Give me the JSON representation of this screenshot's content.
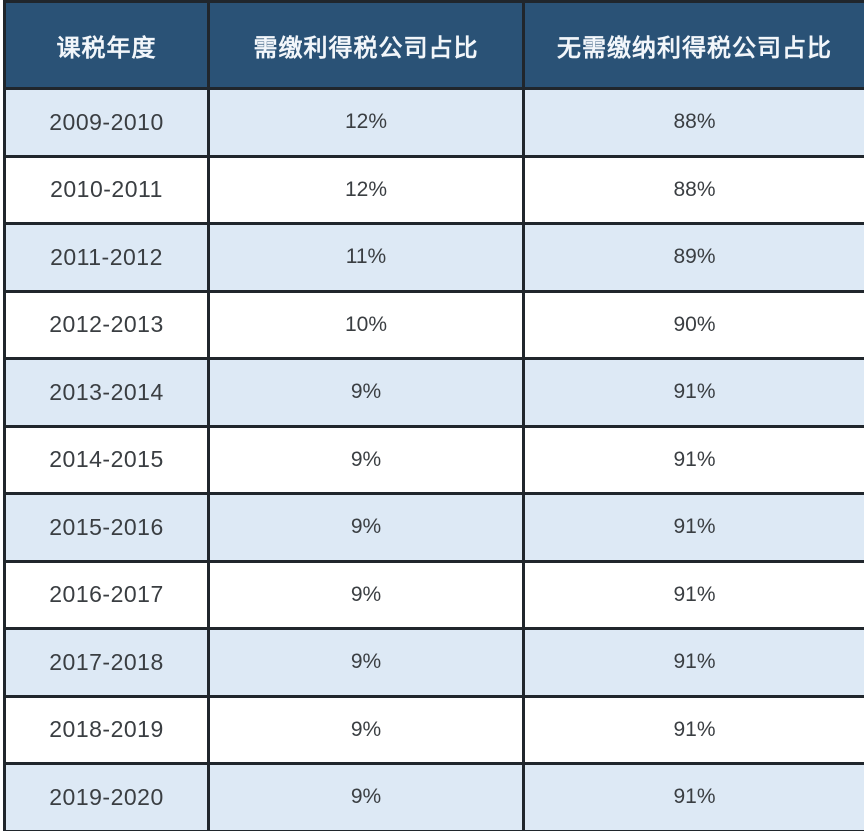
{
  "chart_data": {
    "type": "table",
    "columns": [
      "课税年度",
      "需缴利得税公司占比",
      "无需缴纳利得税公司占比"
    ],
    "rows": [
      [
        "2009-2010",
        "12%",
        "88%"
      ],
      [
        "2010-2011",
        "12%",
        "88%"
      ],
      [
        "2011-2012",
        "11%",
        "89%"
      ],
      [
        "2012-2013",
        "10%",
        "90%"
      ],
      [
        "2013-2014",
        "9%",
        "91%"
      ],
      [
        "2014-2015",
        "9%",
        "91%"
      ],
      [
        "2015-2016",
        "9%",
        "91%"
      ],
      [
        "2016-2017",
        "9%",
        "91%"
      ],
      [
        "2017-2018",
        "9%",
        "91%"
      ],
      [
        "2018-2019",
        "9%",
        "91%"
      ],
      [
        "2019-2020",
        "9%",
        "91%"
      ]
    ],
    "layout": {
      "grid": "on",
      "stripe_pattern": "odd-rows-light-blue",
      "text_align": "center"
    }
  },
  "colors": {
    "header_bg": "#2a5276",
    "header_text": "#f2f6fa",
    "row_alt_bg": "#dde9f5",
    "row_bg": "#ffffff",
    "border": "#20262c",
    "cell_text": "#3a3e42"
  }
}
